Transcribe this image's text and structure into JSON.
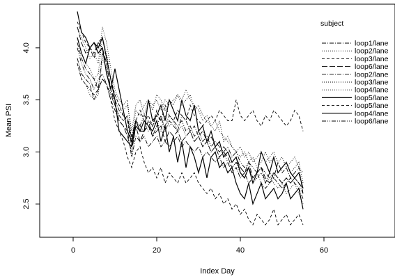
{
  "chart_data": {
    "type": "line",
    "title": "",
    "xlabel": "Index Day",
    "ylabel": "Mean PSI",
    "xlim": [
      -8,
      77
    ],
    "ylim": [
      2.18,
      4.42
    ],
    "xticks": [
      0,
      20,
      40,
      60
    ],
    "yticks": [
      2.5,
      3.0,
      3.5,
      4.0
    ],
    "ytick_labels": [
      "2.5",
      "3.0",
      "3.5",
      "4.0"
    ],
    "grid": false,
    "legend": {
      "title": "subject",
      "placement": "top-right",
      "entries": [
        "loop1/lane",
        "loop2/lane",
        "loop3/lane",
        "loop6/lane",
        "loop2/lane",
        "loop3/lane",
        "loop4/lane",
        "loop5/lane",
        "loop5/lane",
        "loop4/lane",
        "loop6/lane"
      ]
    },
    "x": [
      1,
      2,
      3,
      4,
      5,
      6,
      7,
      8,
      9,
      10,
      11,
      12,
      13,
      14,
      15,
      16,
      17,
      18,
      19,
      20,
      21,
      22,
      23,
      24,
      25,
      26,
      27,
      28,
      29,
      30,
      31,
      32,
      33,
      34,
      35,
      36,
      37,
      38,
      39,
      40,
      41,
      42,
      43,
      44,
      45,
      46,
      47,
      48,
      49,
      50,
      51,
      52,
      53,
      54,
      55
    ],
    "series": [
      {
        "name": "loop1/lane",
        "style": "dashdot",
        "width": 0.9,
        "values": [
          4.05,
          3.9,
          3.8,
          3.75,
          3.7,
          3.6,
          3.95,
          3.85,
          3.6,
          3.5,
          3.4,
          3.35,
          3.3,
          3.15,
          3.3,
          3.25,
          3.2,
          3.3,
          3.15,
          3.25,
          3.35,
          3.2,
          3.3,
          3.25,
          3.2,
          3.35,
          3.3,
          3.2,
          3.25,
          3.15,
          3.2,
          3.1,
          3.15,
          3.05,
          3.0,
          3.05,
          3.0,
          2.9,
          2.95,
          2.85,
          2.8,
          2.9,
          2.75,
          2.8,
          2.85,
          2.7,
          2.8,
          2.75,
          2.9,
          2.8,
          2.85,
          2.75,
          2.8,
          2.85,
          2.6
        ]
      },
      {
        "name": "loop2/lane",
        "style": "dotted",
        "width": 0.9,
        "values": [
          4.2,
          4.1,
          4.0,
          3.9,
          3.95,
          3.85,
          4.2,
          4.05,
          3.8,
          3.6,
          3.5,
          3.45,
          3.5,
          3.1,
          3.4,
          3.35,
          3.45,
          3.5,
          3.4,
          3.55,
          3.5,
          3.4,
          3.5,
          3.45,
          3.55,
          3.5,
          3.6,
          3.5,
          3.45,
          3.4,
          3.3,
          3.35,
          3.25,
          3.2,
          3.3,
          3.1,
          3.15,
          3.05,
          3.0,
          2.95,
          3.0,
          2.9,
          2.95,
          2.85,
          2.9,
          3.0,
          2.9,
          2.95,
          2.8,
          2.85,
          2.9,
          2.8,
          2.85,
          2.9,
          2.7
        ]
      },
      {
        "name": "loop3/lane",
        "style": "dashed",
        "width": 0.9,
        "values": [
          4.25,
          4.15,
          4.05,
          4.0,
          3.95,
          4.05,
          4.1,
          3.9,
          3.7,
          3.55,
          3.45,
          3.35,
          3.3,
          3.05,
          3.3,
          3.4,
          3.3,
          3.35,
          3.25,
          3.4,
          3.3,
          3.45,
          3.35,
          3.3,
          3.4,
          3.35,
          3.3,
          3.45,
          3.35,
          3.3,
          3.25,
          3.3,
          3.35,
          3.3,
          3.4,
          3.35,
          3.3,
          3.3,
          3.5,
          3.35,
          3.3,
          3.35,
          3.4,
          3.3,
          3.25,
          3.35,
          3.3,
          3.4,
          3.35,
          3.3,
          3.25,
          3.3,
          3.4,
          3.35,
          3.2
        ]
      },
      {
        "name": "loop6/lane",
        "style": "longdash",
        "width": 0.9,
        "values": [
          4.2,
          4.05,
          3.95,
          4.0,
          3.9,
          4.05,
          4.0,
          3.85,
          3.6,
          3.45,
          3.3,
          3.25,
          3.15,
          3.0,
          3.25,
          3.1,
          3.2,
          3.25,
          3.15,
          3.2,
          3.25,
          3.1,
          3.2,
          3.15,
          3.2,
          3.1,
          3.15,
          3.2,
          3.1,
          3.15,
          3.05,
          3.1,
          3.0,
          3.05,
          2.95,
          3.0,
          2.95,
          2.85,
          2.9,
          2.85,
          2.8,
          2.85,
          2.75,
          2.8,
          2.85,
          2.75,
          2.7,
          2.8,
          2.75,
          2.7,
          2.75,
          2.7,
          2.75,
          2.7,
          2.65
        ]
      },
      {
        "name": "loop2/lane",
        "style": "dashdot",
        "width": 0.9,
        "values": [
          3.9,
          3.75,
          3.7,
          3.65,
          3.5,
          3.6,
          3.7,
          3.65,
          3.5,
          3.4,
          3.3,
          3.25,
          3.2,
          2.95,
          3.15,
          3.1,
          3.15,
          3.05,
          3.1,
          3.15,
          3.05,
          3.1,
          3.05,
          3.1,
          3.15,
          3.05,
          3.1,
          3.05,
          3.0,
          3.05,
          2.95,
          3.0,
          2.95,
          2.9,
          2.95,
          2.85,
          2.9,
          2.8,
          2.85,
          2.75,
          2.8,
          2.7,
          2.75,
          2.8,
          2.7,
          2.65,
          2.7,
          2.75,
          2.7,
          2.65,
          2.7,
          2.75,
          2.7,
          2.65,
          2.55
        ]
      },
      {
        "name": "loop3/lane",
        "style": "dotted",
        "width": 0.9,
        "values": [
          4.1,
          3.95,
          3.85,
          3.8,
          3.7,
          3.75,
          4.1,
          3.95,
          3.7,
          3.55,
          3.45,
          3.4,
          3.45,
          3.2,
          3.45,
          3.5,
          3.35,
          3.5,
          3.45,
          3.5,
          3.4,
          3.5,
          3.45,
          3.5,
          3.55,
          3.45,
          3.5,
          3.55,
          3.4,
          3.45,
          3.35,
          3.3,
          3.25,
          3.3,
          3.2,
          3.15,
          3.1,
          3.05,
          3.0,
          3.05,
          2.95,
          3.0,
          2.9,
          2.95,
          3.0,
          2.9,
          2.95,
          3.0,
          2.9,
          2.95,
          2.85,
          2.9,
          2.95,
          2.85,
          2.8
        ]
      },
      {
        "name": "loop4/lane",
        "style": "dotted",
        "width": 0.9,
        "values": [
          3.85,
          3.7,
          3.65,
          3.55,
          3.5,
          3.55,
          3.9,
          3.8,
          3.55,
          3.45,
          3.35,
          3.3,
          3.35,
          3.05,
          3.3,
          3.2,
          3.3,
          3.2,
          3.25,
          3.3,
          3.2,
          3.35,
          3.25,
          3.3,
          3.2,
          3.25,
          3.15,
          3.2,
          3.1,
          3.15,
          3.05,
          3.1,
          3.0,
          3.05,
          2.95,
          3.0,
          2.9,
          2.85,
          2.9,
          2.8,
          2.75,
          2.85,
          2.7,
          2.75,
          2.8,
          2.7,
          2.75,
          2.7,
          2.65,
          2.7,
          2.6,
          2.65,
          2.7,
          2.6,
          2.5
        ]
      },
      {
        "name": "loop5/lane",
        "style": "solid",
        "width": 1.2,
        "values": [
          4.35,
          4.15,
          4.1,
          4.0,
          4.05,
          4.0,
          4.1,
          3.9,
          3.7,
          3.5,
          3.2,
          3.15,
          3.1,
          3.05,
          3.25,
          3.2,
          3.2,
          3.5,
          3.3,
          3.35,
          3.45,
          3.3,
          3.5,
          3.4,
          3.3,
          3.5,
          3.35,
          3.3,
          3.45,
          3.2,
          3.25,
          3.1,
          3.2,
          3.05,
          3.1,
          2.95,
          3.0,
          2.9,
          2.95,
          2.8,
          2.75,
          2.85,
          2.7,
          2.8,
          3.0,
          2.9,
          2.8,
          2.95,
          2.8,
          2.85,
          2.9,
          2.8,
          2.75,
          2.8,
          2.65
        ]
      },
      {
        "name": "loop5/lane",
        "style": "dashed",
        "width": 0.9,
        "values": [
          3.85,
          3.7,
          3.65,
          3.6,
          3.55,
          3.6,
          3.7,
          3.65,
          3.5,
          3.3,
          3.2,
          3.1,
          2.95,
          2.85,
          3.0,
          3.05,
          2.9,
          2.8,
          2.85,
          2.75,
          2.85,
          2.7,
          2.8,
          2.75,
          2.7,
          2.8,
          2.7,
          2.75,
          2.8,
          2.7,
          2.65,
          2.6,
          2.65,
          2.55,
          2.6,
          2.5,
          2.55,
          2.45,
          2.5,
          2.4,
          2.45,
          2.35,
          2.3,
          2.4,
          2.35,
          2.3,
          2.35,
          2.45,
          2.3,
          2.35,
          2.4,
          2.3,
          2.35,
          2.4,
          2.3
        ]
      },
      {
        "name": "loop4/lane",
        "style": "solid",
        "width": 1.2,
        "values": [
          4.1,
          3.95,
          3.85,
          4.0,
          4.05,
          3.95,
          4.0,
          3.75,
          3.6,
          3.8,
          3.6,
          3.4,
          3.2,
          3.1,
          3.3,
          3.2,
          3.3,
          3.25,
          3.2,
          3.3,
          3.1,
          3.25,
          3.0,
          3.15,
          2.9,
          3.1,
          2.85,
          3.05,
          2.95,
          2.8,
          2.95,
          2.75,
          2.95,
          3.0,
          2.85,
          2.9,
          2.8,
          2.85,
          2.7,
          2.6,
          2.55,
          2.7,
          2.5,
          2.6,
          2.7,
          2.55,
          2.6,
          2.65,
          2.55,
          2.6,
          2.7,
          2.55,
          2.6,
          2.65,
          2.45
        ]
      },
      {
        "name": "loop6/lane",
        "style": "dashdotdot",
        "width": 0.9,
        "values": [
          4.0,
          3.85,
          3.75,
          3.7,
          3.6,
          3.7,
          3.75,
          3.65,
          3.55,
          3.45,
          3.35,
          3.3,
          3.35,
          3.1,
          3.3,
          3.25,
          3.35,
          3.3,
          3.25,
          3.35,
          3.3,
          3.25,
          3.35,
          3.3,
          3.25,
          3.3,
          3.2,
          3.25,
          3.15,
          3.2,
          3.1,
          3.15,
          3.05,
          3.1,
          3.05,
          3.0,
          3.05,
          2.95,
          3.0,
          2.9,
          2.85,
          2.9,
          2.85,
          2.8,
          2.85,
          2.8,
          2.75,
          2.8,
          2.75,
          2.7,
          2.75,
          2.7,
          2.75,
          2.7,
          2.6
        ]
      }
    ]
  }
}
